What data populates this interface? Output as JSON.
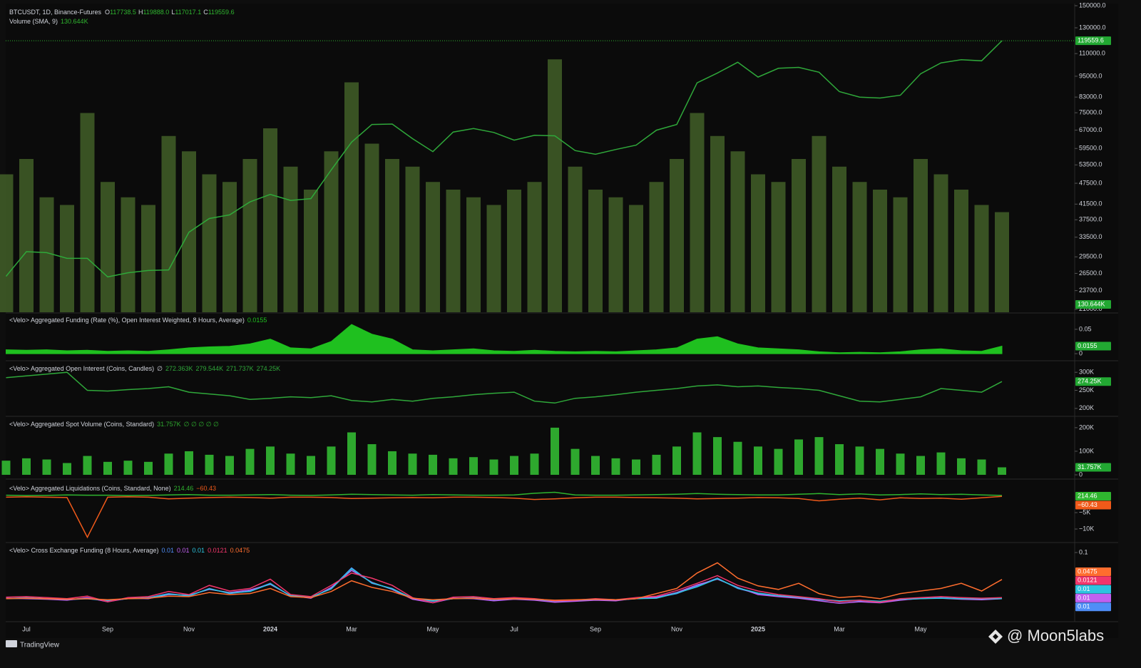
{
  "chart_data": [
    {
      "type": "line",
      "title": "BTCUSDT, 1D, Binance-Futures",
      "log_scale": true,
      "ohlc": [
        {
          "key": "O",
          "value": "117738.5"
        },
        {
          "key": "H",
          "value": "119888.0"
        },
        {
          "key": "L",
          "value": "117017.1"
        },
        {
          "key": "C",
          "value": "119559.6"
        }
      ],
      "categories": [
        null,
        "Jul",
        null,
        null,
        null,
        "Sep",
        null,
        null,
        null,
        "Nov",
        null,
        null,
        null,
        "2024",
        null,
        null,
        null,
        "Mar",
        null,
        null,
        null,
        "May",
        null,
        null,
        null,
        "Jul",
        null,
        null,
        null,
        "Sep",
        null,
        null,
        null,
        "Nov",
        null,
        null,
        null,
        "2025",
        null,
        null,
        null,
        "Mar",
        null,
        null,
        null,
        "May",
        null,
        null,
        null,
        null
      ],
      "series": [
        {
          "color": "#2fa83a",
          "values": [
            26000,
            30500,
            30300,
            29200,
            29200,
            25900,
            26600,
            27000,
            27100,
            34600,
            37800,
            38700,
            42100,
            44200,
            42500,
            43000,
            51800,
            62000,
            69500,
            69700,
            63400,
            58300,
            66200,
            67700,
            66000,
            62800,
            64800,
            64600,
            58700,
            57300,
            59100,
            60800,
            67000,
            69500,
            91000,
            97000,
            104000,
            94500,
            100000,
            100600,
            97500,
            86000,
            83000,
            82500,
            84000,
            96500,
            103600,
            105700,
            105000,
            119559.6
          ]
        }
      ],
      "volume": {
        "title": "Volume (SMA, 9)",
        "value_label": "130.644K",
        "color": "#4a6b2c",
        "ylim": [
          0,
          400000
        ],
        "values": [
          180000,
          200000,
          150000,
          140000,
          260000,
          170000,
          150000,
          140000,
          230000,
          210000,
          180000,
          170000,
          200000,
          240000,
          190000,
          160000,
          210000,
          300000,
          220000,
          200000,
          190000,
          170000,
          160000,
          150000,
          140000,
          160000,
          170000,
          330000,
          190000,
          160000,
          150000,
          140000,
          170000,
          200000,
          260000,
          230000,
          210000,
          180000,
          170000,
          200000,
          230000,
          190000,
          170000,
          160000,
          150000,
          200000,
          180000,
          160000,
          140000,
          130644
        ]
      },
      "ylim": [
        20600,
        150000
      ],
      "yticks": [
        {
          "value": 150000,
          "label": "150000.0"
        },
        {
          "value": 130000,
          "label": "130000.0"
        },
        {
          "value": 110000,
          "label": "110000.0"
        },
        {
          "value": 95000,
          "label": "95000.0"
        },
        {
          "value": 83000,
          "label": "83000.0"
        },
        {
          "value": 75000,
          "label": "75000.0"
        },
        {
          "value": 67000,
          "label": "67000.0"
        },
        {
          "value": 59500,
          "label": "59500.0"
        },
        {
          "value": 53500,
          "label": "53500.0"
        },
        {
          "value": 47500,
          "label": "47500.0"
        },
        {
          "value": 41500,
          "label": "41500.0"
        },
        {
          "value": 37500,
          "label": "37500.0"
        },
        {
          "value": 33500,
          "label": "33500.0"
        },
        {
          "value": 29500,
          "label": "29500.0"
        },
        {
          "value": 26500,
          "label": "26500.0"
        },
        {
          "value": 23700,
          "label": "23700.0"
        },
        {
          "value": 21000,
          "label": "21000.0"
        }
      ]
    },
    {
      "type": "area",
      "title": "<Velo> Aggregated Funding (Rate (%), Open Interest Weighted, 8 Hours, Average)",
      "legend_values": [
        "0.0155"
      ],
      "series": [
        {
          "color": "#1fc01f",
          "values": [
            0.008,
            0.007,
            0.008,
            0.006,
            0.007,
            0.005,
            0.006,
            0.005,
            0.008,
            0.012,
            0.014,
            0.015,
            0.02,
            0.03,
            0.012,
            0.01,
            0.025,
            0.06,
            0.04,
            0.03,
            0.008,
            0.006,
            0.008,
            0.01,
            0.006,
            0.005,
            0.007,
            0.005,
            0.004,
            0.005,
            0.004,
            0.006,
            0.008,
            0.012,
            0.03,
            0.035,
            0.02,
            0.012,
            0.01,
            0.008,
            0.004,
            0.002,
            0.003,
            0.002,
            0.004,
            0.008,
            0.01,
            0.006,
            0.005,
            0.0155
          ]
        }
      ],
      "ylim": [
        -0.013,
        0.082
      ],
      "yticks": [
        0.05,
        0
      ]
    },
    {
      "type": "line",
      "title": "<Velo> Aggregated Open Interest (Coins, Candles)",
      "legend_values": [
        "∅",
        "272.363K",
        "279.544K",
        "271.737K",
        "274.25K"
      ],
      "last_value_label": "274.25K",
      "series": [
        {
          "color": "#2fa83a",
          "values": [
            285000,
            290000,
            295000,
            300000,
            250000,
            248000,
            252000,
            255000,
            260000,
            245000,
            240000,
            235000,
            225000,
            228000,
            232000,
            230000,
            235000,
            222000,
            218000,
            225000,
            220000,
            228000,
            232000,
            238000,
            242000,
            245000,
            220000,
            215000,
            228000,
            232000,
            238000,
            245000,
            250000,
            255000,
            262000,
            265000,
            260000,
            262000,
            258000,
            255000,
            250000,
            235000,
            220000,
            218000,
            225000,
            232000,
            255000,
            250000,
            245000,
            274250
          ]
        }
      ],
      "ylim": [
        180000,
        328000
      ],
      "yticks": [
        {
          "value": 300000,
          "label": "300K"
        },
        {
          "value": 250000,
          "label": "250K"
        },
        {
          "value": 200000,
          "label": "200K"
        }
      ]
    },
    {
      "type": "bar",
      "title": "<Velo> Aggregated Spot Volume (Coins, Standard)",
      "legend_values": [
        "31.757K",
        "∅ ∅ ∅ ∅ ∅"
      ],
      "last_value_label": "31.757K",
      "series": [
        {
          "color": "#2ea82e",
          "values": [
            60000,
            70000,
            65000,
            50000,
            80000,
            55000,
            60000,
            55000,
            90000,
            100000,
            85000,
            80000,
            110000,
            120000,
            90000,
            80000,
            120000,
            180000,
            130000,
            100000,
            90000,
            85000,
            70000,
            75000,
            65000,
            80000,
            90000,
            200000,
            110000,
            80000,
            70000,
            65000,
            85000,
            120000,
            180000,
            160000,
            140000,
            120000,
            110000,
            150000,
            160000,
            130000,
            120000,
            110000,
            90000,
            80000,
            95000,
            70000,
            65000,
            31757
          ]
        }
      ],
      "ylim": [
        -6000,
        242000
      ],
      "yticks": [
        {
          "value": 200000,
          "label": "200K"
        },
        {
          "value": 100000,
          "label": "100K"
        },
        0
      ]
    },
    {
      "type": "line",
      "title": "<Velo> Aggregated Liquidations (Coins, Standard, None)",
      "legend_values": [
        "214.46",
        "−60.43"
      ],
      "series": [
        {
          "color": "#2fb52f",
          "values": [
            300,
            200,
            250,
            400,
            300,
            300,
            200,
            250,
            400,
            500,
            300,
            300,
            400,
            500,
            300,
            250,
            400,
            600,
            500,
            400,
            300,
            500,
            400,
            300,
            300,
            400,
            900,
            1200,
            400,
            300,
            300,
            400,
            500,
            600,
            800,
            600,
            500,
            400,
            400,
            600,
            800,
            500,
            700,
            400,
            500,
            700,
            500,
            600,
            400,
            214.46
          ]
        },
        {
          "color": "#f05a1a",
          "values": [
            -300,
            -200,
            -300,
            -400,
            -12500,
            -300,
            -200,
            -300,
            -800,
            -600,
            -400,
            -300,
            -400,
            -600,
            -300,
            -300,
            -400,
            -700,
            -600,
            -500,
            -400,
            -500,
            -300,
            -300,
            -400,
            -600,
            -1000,
            -800,
            -500,
            -300,
            -300,
            -400,
            -500,
            -600,
            -800,
            -700,
            -600,
            -400,
            -500,
            -700,
            -1400,
            -900,
            -600,
            -1100,
            -500,
            -700,
            -600,
            -900,
            -500,
            -60.43
          ]
        }
      ],
      "ylim": [
        -13900,
        4350
      ],
      "yticks": [
        {
          "value": -5000,
          "label": "−5K"
        },
        {
          "value": -10000,
          "label": "−10K"
        }
      ]
    },
    {
      "type": "line",
      "title": "<Velo> Cross Exchange Funding (8 Hours, Average)",
      "legend_values": [
        "0.01",
        "0.01",
        "0.01",
        "0.0121",
        "0.0475"
      ],
      "series": [
        {
          "color": "#4f8ef7",
          "values": [
            0.01,
            0.012,
            0.01,
            0.008,
            0.01,
            0.006,
            0.01,
            0.012,
            0.02,
            0.015,
            0.03,
            0.02,
            0.025,
            0.04,
            0.015,
            0.012,
            0.03,
            0.07,
            0.04,
            0.03,
            0.01,
            0.005,
            0.01,
            0.012,
            0.008,
            0.01,
            0.008,
            0.005,
            0.006,
            0.008,
            0.007,
            0.01,
            0.012,
            0.02,
            0.035,
            0.05,
            0.03,
            0.02,
            0.015,
            0.012,
            0.008,
            0.005,
            0.006,
            0.004,
            0.008,
            0.01,
            0.012,
            0.01,
            0.01,
            0.01
          ]
        },
        {
          "color": "#c060f0",
          "values": [
            0.011,
            0.01,
            0.009,
            0.007,
            0.012,
            0.004,
            0.011,
            0.01,
            0.018,
            0.017,
            0.028,
            0.022,
            0.027,
            0.038,
            0.016,
            0.011,
            0.032,
            0.065,
            0.042,
            0.028,
            0.009,
            0.002,
            0.011,
            0.01,
            0.006,
            0.009,
            0.007,
            0.003,
            0.005,
            0.007,
            0.006,
            0.011,
            0.013,
            0.022,
            0.037,
            0.048,
            0.032,
            0.018,
            0.014,
            0.011,
            0.006,
            0.001,
            0.004,
            0.002,
            0.007,
            0.011,
            0.011,
            0.009,
            0.008,
            0.01
          ]
        },
        {
          "color": "#2cc4df",
          "values": [
            0.01,
            0.011,
            0.01,
            0.009,
            0.01,
            0.007,
            0.01,
            0.011,
            0.019,
            0.016,
            0.029,
            0.021,
            0.024,
            0.039,
            0.016,
            0.013,
            0.029,
            0.068,
            0.041,
            0.029,
            0.011,
            0.006,
            0.01,
            0.011,
            0.009,
            0.01,
            0.009,
            0.006,
            0.007,
            0.009,
            0.008,
            0.01,
            0.011,
            0.021,
            0.033,
            0.049,
            0.031,
            0.021,
            0.016,
            0.013,
            0.009,
            0.006,
            0.007,
            0.005,
            0.009,
            0.01,
            0.011,
            0.01,
            0.01,
            0.01
          ]
        },
        {
          "color": "#f2366b",
          "values": [
            0.013,
            0.014,
            0.012,
            0.01,
            0.015,
            0.004,
            0.012,
            0.014,
            0.024,
            0.018,
            0.036,
            0.025,
            0.03,
            0.048,
            0.018,
            0.014,
            0.036,
            0.06,
            0.05,
            0.036,
            0.012,
            0.002,
            0.013,
            0.014,
            0.01,
            0.012,
            0.01,
            0.006,
            0.007,
            0.01,
            0.008,
            0.012,
            0.015,
            0.026,
            0.04,
            0.055,
            0.036,
            0.025,
            0.018,
            0.014,
            0.01,
            0.004,
            0.007,
            0.003,
            0.01,
            0.012,
            0.014,
            0.012,
            0.011,
            0.0121
          ]
        },
        {
          "color": "#ff6d2e",
          "values": [
            0.01,
            0.011,
            0.01,
            0.009,
            0.01,
            0.008,
            0.01,
            0.011,
            0.015,
            0.014,
            0.022,
            0.018,
            0.02,
            0.03,
            0.014,
            0.012,
            0.024,
            0.045,
            0.032,
            0.024,
            0.011,
            0.008,
            0.01,
            0.011,
            0.009,
            0.01,
            0.009,
            0.007,
            0.008,
            0.009,
            0.008,
            0.01,
            0.02,
            0.03,
            0.06,
            0.08,
            0.05,
            0.035,
            0.028,
            0.04,
            0.02,
            0.012,
            0.015,
            0.01,
            0.02,
            0.025,
            0.03,
            0.04,
            0.025,
            0.0475
          ]
        }
      ],
      "ylim": [
        -0.032,
        0.1167
      ],
      "yticks": [
        0.1
      ]
    }
  ],
  "footer": {
    "brand": "TradingView",
    "watermark": "@ Moon5labs"
  }
}
